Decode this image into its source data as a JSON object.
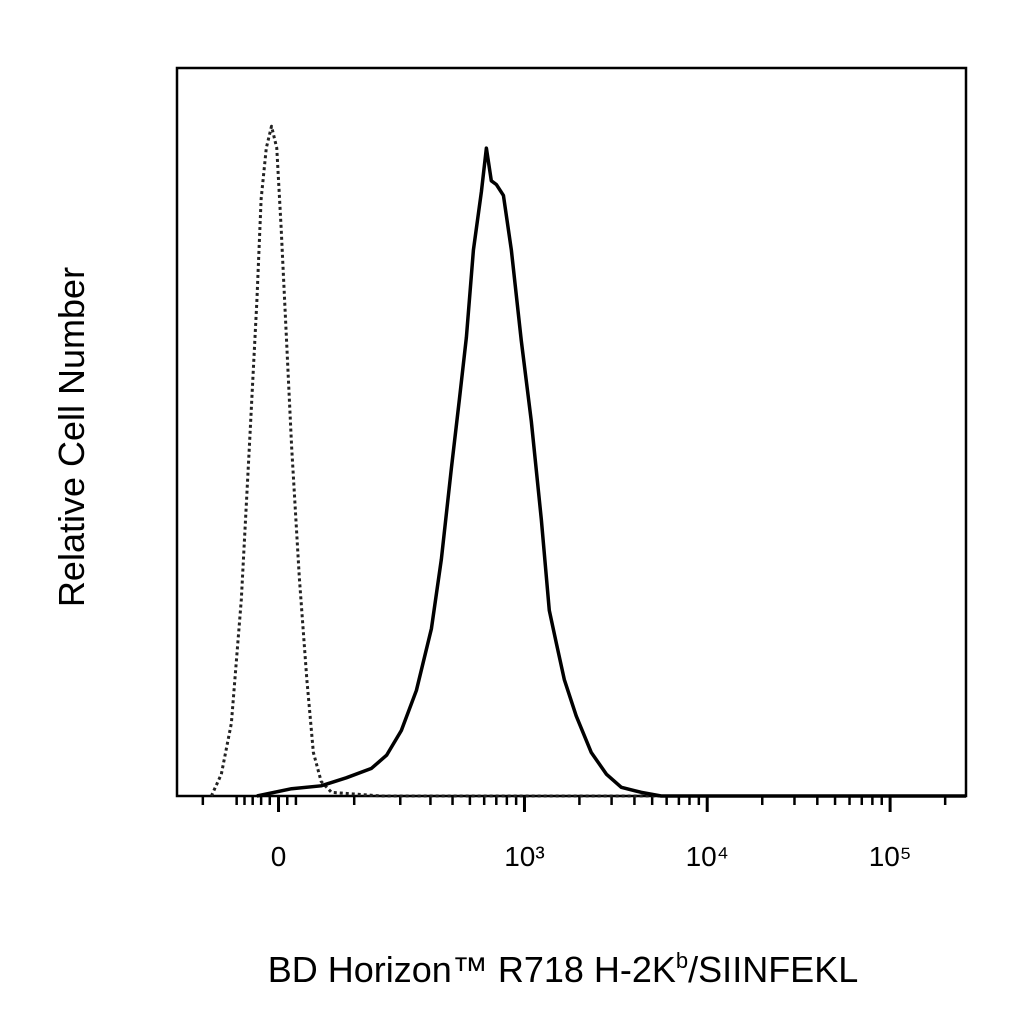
{
  "chart_data": {
    "type": "line",
    "ylabel": "Relative Cell Number",
    "xlabel": [
      "BD Horizon™ R718 H-2K",
      "b",
      "/SIINFEKL"
    ],
    "xscale": "biexponential",
    "xlim": [
      -150,
      260000
    ],
    "ylim": [
      0,
      100
    ],
    "xticks": [
      0,
      {
        "value": 1000,
        "label": "10³"
      },
      {
        "value": 10000,
        "label": "10⁴"
      },
      {
        "value": 100000,
        "label": "10⁵"
      }
    ],
    "xminorticks": [
      -100,
      -50,
      -40,
      -30,
      -20,
      -10,
      10,
      20,
      100,
      200,
      300,
      400,
      500,
      600,
      700,
      800,
      900,
      2000,
      3000,
      4000,
      5000,
      6000,
      7000,
      8000,
      9000,
      20000,
      30000,
      40000,
      50000,
      60000,
      70000,
      80000,
      90000,
      200000
    ],
    "series": [
      {
        "style": "dotted",
        "color": "#222222",
        "x": [
          -86,
          -71,
          -57,
          -44,
          -34,
          -25,
          -20,
          -14,
          -8,
          -2,
          3,
          9,
          15,
          24,
          33,
          41,
          51,
          65,
          153,
          260000
        ],
        "values": [
          0,
          3,
          10,
          27,
          48,
          68,
          82,
          89,
          92,
          89,
          78,
          63,
          48,
          30,
          16,
          6,
          2,
          0.5,
          0,
          0
        ]
      },
      {
        "style": "solid",
        "color": "#000000",
        "x": [
          -25,
          15,
          51,
          87,
          132,
          165,
          203,
          249,
          304,
          346,
          394,
          437,
          478,
          523,
          579,
          617,
          657,
          700,
          766,
          847,
          961,
          1090,
          1237,
          1368,
          1495,
          1653,
          1921,
          2320,
          2809,
          3390,
          4360,
          5600,
          9270,
          260000
        ],
        "values": [
          0,
          1,
          1.4,
          2.5,
          3.8,
          5.6,
          9,
          14.5,
          23,
          32.5,
          45,
          54.5,
          63,
          75,
          83,
          89,
          84.5,
          84,
          82.5,
          75,
          62.5,
          51.5,
          38,
          25.5,
          21,
          16,
          11,
          6,
          3,
          1.2,
          0.5,
          0,
          0,
          0
        ]
      }
    ]
  }
}
